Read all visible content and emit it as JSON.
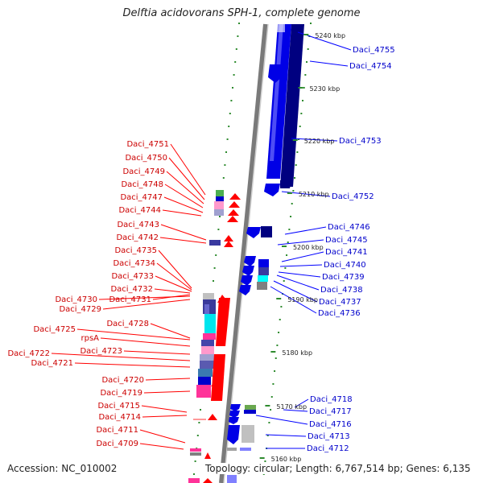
{
  "title": "Delftia acidovorans SPH-1, complete genome",
  "footer": {
    "accession": "Accession: NC_010002",
    "summary": "Topology: circular; Length: 6,767,514 bp; Genes: 6,135"
  },
  "colors": {
    "left_label": "#cc0000",
    "right_label": "#0000cc",
    "left_gene": "#ff0000",
    "right_gene": "#0000ff",
    "backbone": "#8c8c8c",
    "guide_dash": "#2e8b2e"
  },
  "ruler_labels": [
    "5240 kbp",
    "5230 kbp",
    "5220 kbp",
    "5210 kbp",
    "5200 kbp",
    "5190 kbp",
    "5180 kbp",
    "5170 kbp",
    "5160 kbp"
  ],
  "left_labels": [
    "Daci_4751",
    "Daci_4750",
    "Daci_4749",
    "Daci_4748",
    "Daci_4747",
    "Daci_4744",
    "Daci_4743",
    "Daci_4742",
    "Daci_4735",
    "Daci_4734",
    "Daci_4733",
    "Daci_4732",
    "Daci_4731",
    "Daci_4730",
    "Daci_4729",
    "Daci_4728",
    "Daci_4725",
    "rpsA",
    "Daci_4723",
    "Daci_4722",
    "Daci_4721",
    "Daci_4720",
    "Daci_4719",
    "Daci_4715",
    "Daci_4714",
    "Daci_4711",
    "Daci_4709"
  ],
  "right_labels": [
    "Daci_4755",
    "Daci_4754",
    "Daci_4753",
    "Daci_4752",
    "Daci_4746",
    "Daci_4745",
    "Daci_4741",
    "Daci_4740",
    "Daci_4739",
    "Daci_4738",
    "Daci_4737",
    "Daci_4736",
    "Daci_4718",
    "Daci_4717",
    "Daci_4716",
    "Daci_4713",
    "Daci_4712"
  ]
}
